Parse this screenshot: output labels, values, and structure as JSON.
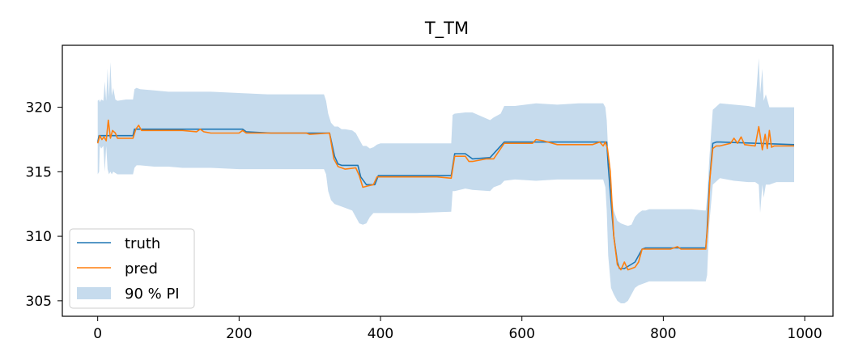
{
  "chart_data": {
    "type": "line",
    "title": "T_TM",
    "xlabel": "",
    "ylabel": "",
    "xlim": [
      -50,
      1040
    ],
    "ylim": [
      303.8,
      324.8
    ],
    "xticks": [
      0,
      200,
      400,
      600,
      800,
      1000
    ],
    "yticks": [
      305,
      310,
      315,
      320
    ],
    "grid": false,
    "legend_position": "lower-left",
    "series": [
      {
        "name": "truth",
        "color": "#1f77b4",
        "x": [
          0,
          2,
          50,
          52,
          205,
          210,
          245,
          300,
          328,
          335,
          340,
          345,
          350,
          368,
          372,
          380,
          392,
          397,
          500,
          505,
          520,
          530,
          555,
          575,
          720,
          722,
          730,
          735,
          738,
          745,
          760,
          770,
          775,
          780,
          860,
          862,
          865,
          868,
          870,
          875,
          880,
          985
        ],
        "values": [
          317.3,
          317.8,
          317.8,
          318.3,
          318.3,
          318.1,
          318.0,
          318.0,
          318.0,
          316.2,
          315.6,
          315.5,
          315.5,
          315.5,
          314.6,
          314.0,
          314.0,
          314.7,
          314.7,
          316.4,
          316.4,
          316.0,
          316.1,
          317.3,
          317.3,
          315.5,
          310.0,
          308.0,
          307.5,
          307.5,
          308.0,
          309.0,
          309.1,
          309.1,
          309.1,
          310.5,
          314.0,
          316.0,
          317.2,
          317.3,
          317.3,
          317.1
        ]
      },
      {
        "name": "pred",
        "color": "#ff7f0e",
        "x": [
          0,
          3,
          6,
          9,
          12,
          15,
          18,
          21,
          25,
          28,
          35,
          42,
          50,
          54,
          58,
          62,
          80,
          120,
          140,
          145,
          150,
          160,
          200,
          205,
          210,
          245,
          295,
          300,
          328,
          334,
          340,
          345,
          350,
          365,
          370,
          375,
          382,
          390,
          395,
          400,
          460,
          480,
          500,
          505,
          520,
          525,
          530,
          550,
          560,
          575,
          600,
          615,
          620,
          630,
          650,
          660,
          700,
          710,
          715,
          718,
          721,
          725,
          730,
          735,
          740,
          745,
          750,
          760,
          765,
          770,
          780,
          810,
          820,
          825,
          855,
          860,
          863,
          866,
          870,
          875,
          880,
          895,
          900,
          905,
          910,
          915,
          930,
          935,
          940,
          944,
          947,
          950,
          953,
          957,
          960,
          985
        ],
        "values": [
          317.2,
          317.8,
          317.5,
          317.7,
          317.4,
          319.0,
          317.6,
          318.2,
          318.0,
          317.6,
          317.6,
          317.6,
          317.6,
          318.3,
          318.6,
          318.2,
          318.2,
          318.2,
          318.1,
          318.3,
          318.1,
          318.0,
          318.0,
          318.2,
          318.0,
          318.0,
          318.0,
          317.9,
          318.0,
          316.0,
          315.4,
          315.3,
          315.2,
          315.3,
          314.7,
          313.8,
          313.9,
          314.0,
          314.6,
          314.6,
          314.6,
          314.6,
          314.5,
          316.2,
          316.2,
          315.8,
          315.8,
          316.0,
          316.0,
          317.2,
          317.2,
          317.2,
          317.5,
          317.4,
          317.1,
          317.1,
          317.1,
          317.3,
          317.0,
          317.3,
          316.8,
          315.0,
          310.0,
          307.8,
          307.4,
          308.0,
          307.4,
          307.6,
          308.0,
          309.0,
          309.0,
          309.0,
          309.2,
          309.0,
          309.0,
          309.0,
          311.0,
          314.5,
          316.8,
          317.0,
          317.0,
          317.2,
          317.6,
          317.2,
          317.7,
          317.1,
          317.0,
          318.5,
          316.7,
          317.9,
          316.8,
          318.2,
          316.9,
          317.0,
          317.0,
          317.0
        ]
      }
    ],
    "band": {
      "name": "90 % PI",
      "color": "#c6dbed",
      "x": [
        0,
        2,
        3,
        5,
        8,
        10,
        12,
        14,
        16,
        18,
        20,
        22,
        25,
        28,
        40,
        50,
        52,
        55,
        60,
        80,
        100,
        120,
        160,
        200,
        240,
        280,
        320,
        323,
        326,
        330,
        335,
        340,
        345,
        350,
        360,
        365,
        370,
        375,
        380,
        385,
        390,
        395,
        400,
        450,
        500,
        502,
        505,
        520,
        530,
        555,
        560,
        570,
        575,
        590,
        620,
        650,
        680,
        700,
        715,
        718,
        720,
        722,
        726,
        730,
        735,
        740,
        745,
        750,
        755,
        760,
        765,
        770,
        775,
        780,
        800,
        820,
        840,
        858,
        860,
        862,
        865,
        870,
        880,
        900,
        920,
        930,
        935,
        937,
        940,
        942,
        945,
        950,
        960,
        985
      ],
      "upper": [
        320.5,
        320.6,
        320.4,
        320.6,
        320.5,
        322.0,
        320.5,
        323.0,
        320.8,
        323.5,
        320.9,
        321.5,
        320.6,
        320.5,
        320.6,
        320.6,
        321.4,
        321.5,
        321.4,
        321.3,
        321.2,
        321.2,
        321.2,
        321.1,
        321.0,
        321.0,
        321.0,
        320.5,
        319.5,
        318.8,
        318.5,
        318.5,
        318.3,
        318.3,
        318.2,
        318.0,
        317.5,
        317.0,
        317.0,
        316.8,
        316.9,
        317.1,
        317.2,
        317.2,
        317.2,
        319.4,
        319.5,
        319.6,
        319.6,
        319.0,
        319.2,
        319.5,
        320.1,
        320.1,
        320.3,
        320.2,
        320.3,
        320.3,
        320.3,
        320.0,
        319.0,
        316.5,
        313.5,
        312.0,
        311.2,
        311.0,
        310.9,
        310.8,
        310.9,
        311.5,
        311.8,
        312.0,
        312.0,
        312.1,
        312.1,
        312.1,
        312.1,
        312.0,
        312.0,
        313.0,
        316.0,
        319.8,
        320.3,
        320.2,
        320.1,
        320.0,
        323.8,
        321.0,
        323.0,
        320.5,
        321.0,
        320.0,
        320.0,
        320.0
      ],
      "lower": [
        314.8,
        315.0,
        317.0,
        316.8,
        317.0,
        315.0,
        317.0,
        315.2,
        314.8,
        315.0,
        314.8,
        315.0,
        314.9,
        314.8,
        314.8,
        314.8,
        315.3,
        315.5,
        315.5,
        315.4,
        315.4,
        315.3,
        315.3,
        315.2,
        315.2,
        315.2,
        315.2,
        314.8,
        313.5,
        312.8,
        312.5,
        312.4,
        312.3,
        312.2,
        312.0,
        311.5,
        311.0,
        310.9,
        311.0,
        311.5,
        311.8,
        311.8,
        311.8,
        311.8,
        311.9,
        313.5,
        313.5,
        313.7,
        313.6,
        313.5,
        313.8,
        314.0,
        314.3,
        314.4,
        314.3,
        314.4,
        314.4,
        314.4,
        314.4,
        313.8,
        312.0,
        308.5,
        306.0,
        305.5,
        305.0,
        304.8,
        304.8,
        305.0,
        305.5,
        306.0,
        306.2,
        306.3,
        306.4,
        306.5,
        306.5,
        306.5,
        306.5,
        306.5,
        306.5,
        307.0,
        311.0,
        314.0,
        314.5,
        314.3,
        314.2,
        314.2,
        314.0,
        311.8,
        314.0,
        313.0,
        314.0,
        314.0,
        314.2,
        314.2
      ]
    }
  }
}
